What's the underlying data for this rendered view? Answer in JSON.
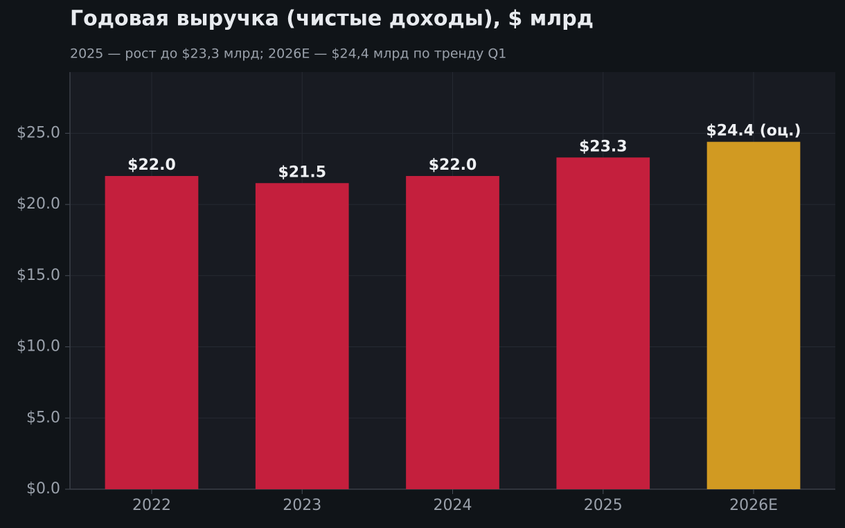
{
  "chart_data": {
    "type": "bar",
    "title": "Годовая выручка (чистые доходы), $ млрд",
    "subtitle": "2025 — рост до $23,3 млрд; 2026E — $24,4 млрд по тренду Q1",
    "categories": [
      "2022",
      "2023",
      "2024",
      "2025",
      "2026E"
    ],
    "values": [
      22.0,
      21.5,
      22.0,
      23.3,
      24.4
    ],
    "value_labels": [
      "$22.0",
      "$21.5",
      "$22.0",
      "$23.3",
      "$24.4 (оц.)"
    ],
    "colors": [
      "#c41f3d",
      "#c41f3d",
      "#c41f3d",
      "#c41f3d",
      "#d19a22"
    ],
    "ylim": [
      0,
      29.3
    ],
    "yticks": [
      {
        "value": 0,
        "label": "$0.0"
      },
      {
        "value": 5,
        "label": "$5.0"
      },
      {
        "value": 10,
        "label": "$10.0"
      },
      {
        "value": 15,
        "label": "$15.0"
      },
      {
        "value": 20,
        "label": "$20.0"
      },
      {
        "value": 25,
        "label": "$25.0"
      }
    ],
    "grid": true
  }
}
